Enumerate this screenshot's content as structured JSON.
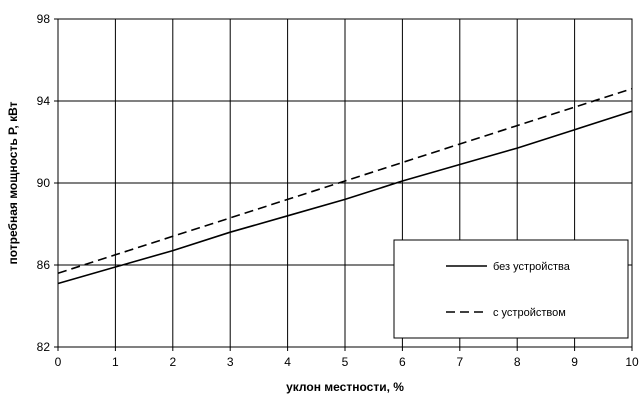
{
  "chart_data": {
    "type": "line",
    "title": "",
    "xlabel": "уклон местности, %",
    "ylabel": "потребная мощность Р, кВт",
    "xlim": [
      0,
      10
    ],
    "ylim": [
      82,
      98
    ],
    "x_ticks": [
      0,
      1,
      2,
      3,
      4,
      5,
      6,
      7,
      8,
      9,
      10
    ],
    "y_ticks": [
      82,
      86,
      90,
      94,
      98
    ],
    "grid": true,
    "legend_position": "bottom-right",
    "x": [
      0,
      1,
      2,
      3,
      4,
      5,
      6,
      7,
      8,
      9,
      10
    ],
    "series": [
      {
        "name": "без устройства",
        "style": "solid",
        "color": "#000000",
        "values": [
          85.1,
          85.9,
          86.7,
          87.6,
          88.4,
          89.2,
          90.1,
          90.9,
          91.7,
          92.6,
          93.5
        ]
      },
      {
        "name": "с устройством",
        "style": "dashed",
        "color": "#000000",
        "values": [
          85.6,
          86.5,
          87.4,
          88.3,
          89.2,
          90.1,
          91.0,
          91.9,
          92.8,
          93.7,
          94.6
        ]
      }
    ]
  }
}
